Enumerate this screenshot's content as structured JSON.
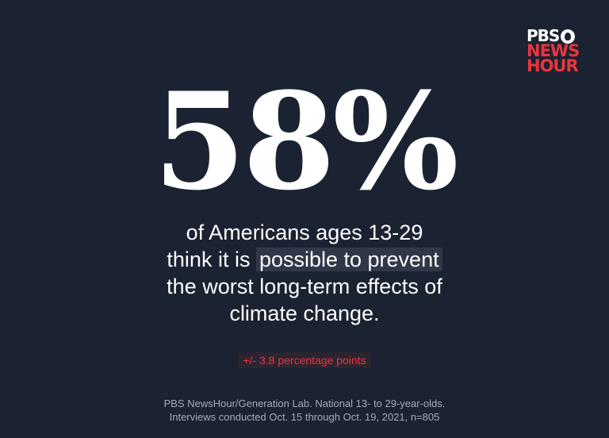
{
  "logo": {
    "line1": "PBS",
    "line2": "NEWS",
    "line3": "HOUR",
    "icon": "pbs-head-icon"
  },
  "headline_stat": "58%",
  "statement": {
    "line1": "of Americans ages 13-29",
    "line2_prefix": "think it is ",
    "line2_highlight": "possible to prevent",
    "line3": "the worst long-term effects of",
    "line4": "climate change."
  },
  "margin_of_error": "+/- 3.8 percentage points",
  "source": {
    "line1": "PBS NewsHour/Generation Lab. National 13- to 29-year-olds.",
    "line2": "Interviews conducted Oct. 15 through Oct. 19, 2021,  n=805"
  },
  "colors": {
    "background": "#1b2232",
    "accent_red": "#e8353c",
    "highlight": "#2f3748"
  }
}
